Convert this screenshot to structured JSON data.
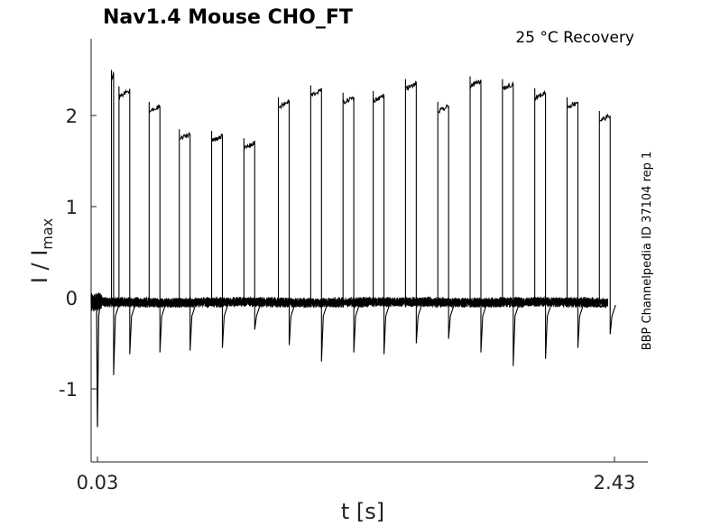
{
  "chart_data": {
    "type": "line",
    "title": "Nav1.4  Mouse  CHO_FT",
    "condition": "25 °C  Recovery",
    "xlabel": "t [s]",
    "ylabel_main": "I / I",
    "ylabel_sub": "max",
    "side_label": "BBP Channelpedia ID 37104 rep 1",
    "xlim": [
      0.0,
      2.5
    ],
    "ylim": [
      -1.8,
      2.85
    ],
    "x_ticks": [
      {
        "value": 0.03,
        "label": "0.03"
      },
      {
        "value": 2.43,
        "label": "2.43"
      }
    ],
    "y_ticks": [
      {
        "value": 2,
        "label": "2"
      },
      {
        "value": 1,
        "label": "1"
      },
      {
        "value": 0,
        "label": "0"
      },
      {
        "value": -1,
        "label": "-1"
      }
    ],
    "grid": false,
    "baseline_noise": 0.05,
    "initial_dip": {
      "t": 0.03,
      "value": -1.42
    },
    "pulses": [
      {
        "t_start": 0.095,
        "t_end": 0.105,
        "value": 2.45,
        "dip": -0.85
      },
      {
        "t_start": 0.13,
        "t_end": 0.18,
        "value": 2.27,
        "dip": -0.62
      },
      {
        "t_start": 0.27,
        "t_end": 0.32,
        "value": 2.1,
        "dip": -0.6
      },
      {
        "t_start": 0.41,
        "t_end": 0.46,
        "value": 1.8,
        "dip": -0.58
      },
      {
        "t_start": 0.56,
        "t_end": 0.61,
        "value": 1.78,
        "dip": -0.55
      },
      {
        "t_start": 0.71,
        "t_end": 0.76,
        "value": 1.7,
        "dip": -0.35
      },
      {
        "t_start": 0.87,
        "t_end": 0.92,
        "value": 2.15,
        "dip": -0.52
      },
      {
        "t_start": 1.02,
        "t_end": 1.07,
        "value": 2.28,
        "dip": -0.7
      },
      {
        "t_start": 1.17,
        "t_end": 1.22,
        "value": 2.2,
        "dip": -0.6
      },
      {
        "t_start": 1.31,
        "t_end": 1.36,
        "value": 2.22,
        "dip": -0.62
      },
      {
        "t_start": 1.46,
        "t_end": 1.51,
        "value": 2.35,
        "dip": -0.5
      },
      {
        "t_start": 1.61,
        "t_end": 1.66,
        "value": 2.1,
        "dip": -0.45
      },
      {
        "t_start": 1.76,
        "t_end": 1.81,
        "value": 2.38,
        "dip": -0.6
      },
      {
        "t_start": 1.91,
        "t_end": 1.96,
        "value": 2.35,
        "dip": -0.75
      },
      {
        "t_start": 2.06,
        "t_end": 2.11,
        "value": 2.25,
        "dip": -0.67
      },
      {
        "t_start": 2.21,
        "t_end": 2.26,
        "value": 2.15,
        "dip": -0.55
      },
      {
        "t_start": 2.36,
        "t_end": 2.41,
        "value": 2.0,
        "dip": -0.4
      }
    ]
  }
}
